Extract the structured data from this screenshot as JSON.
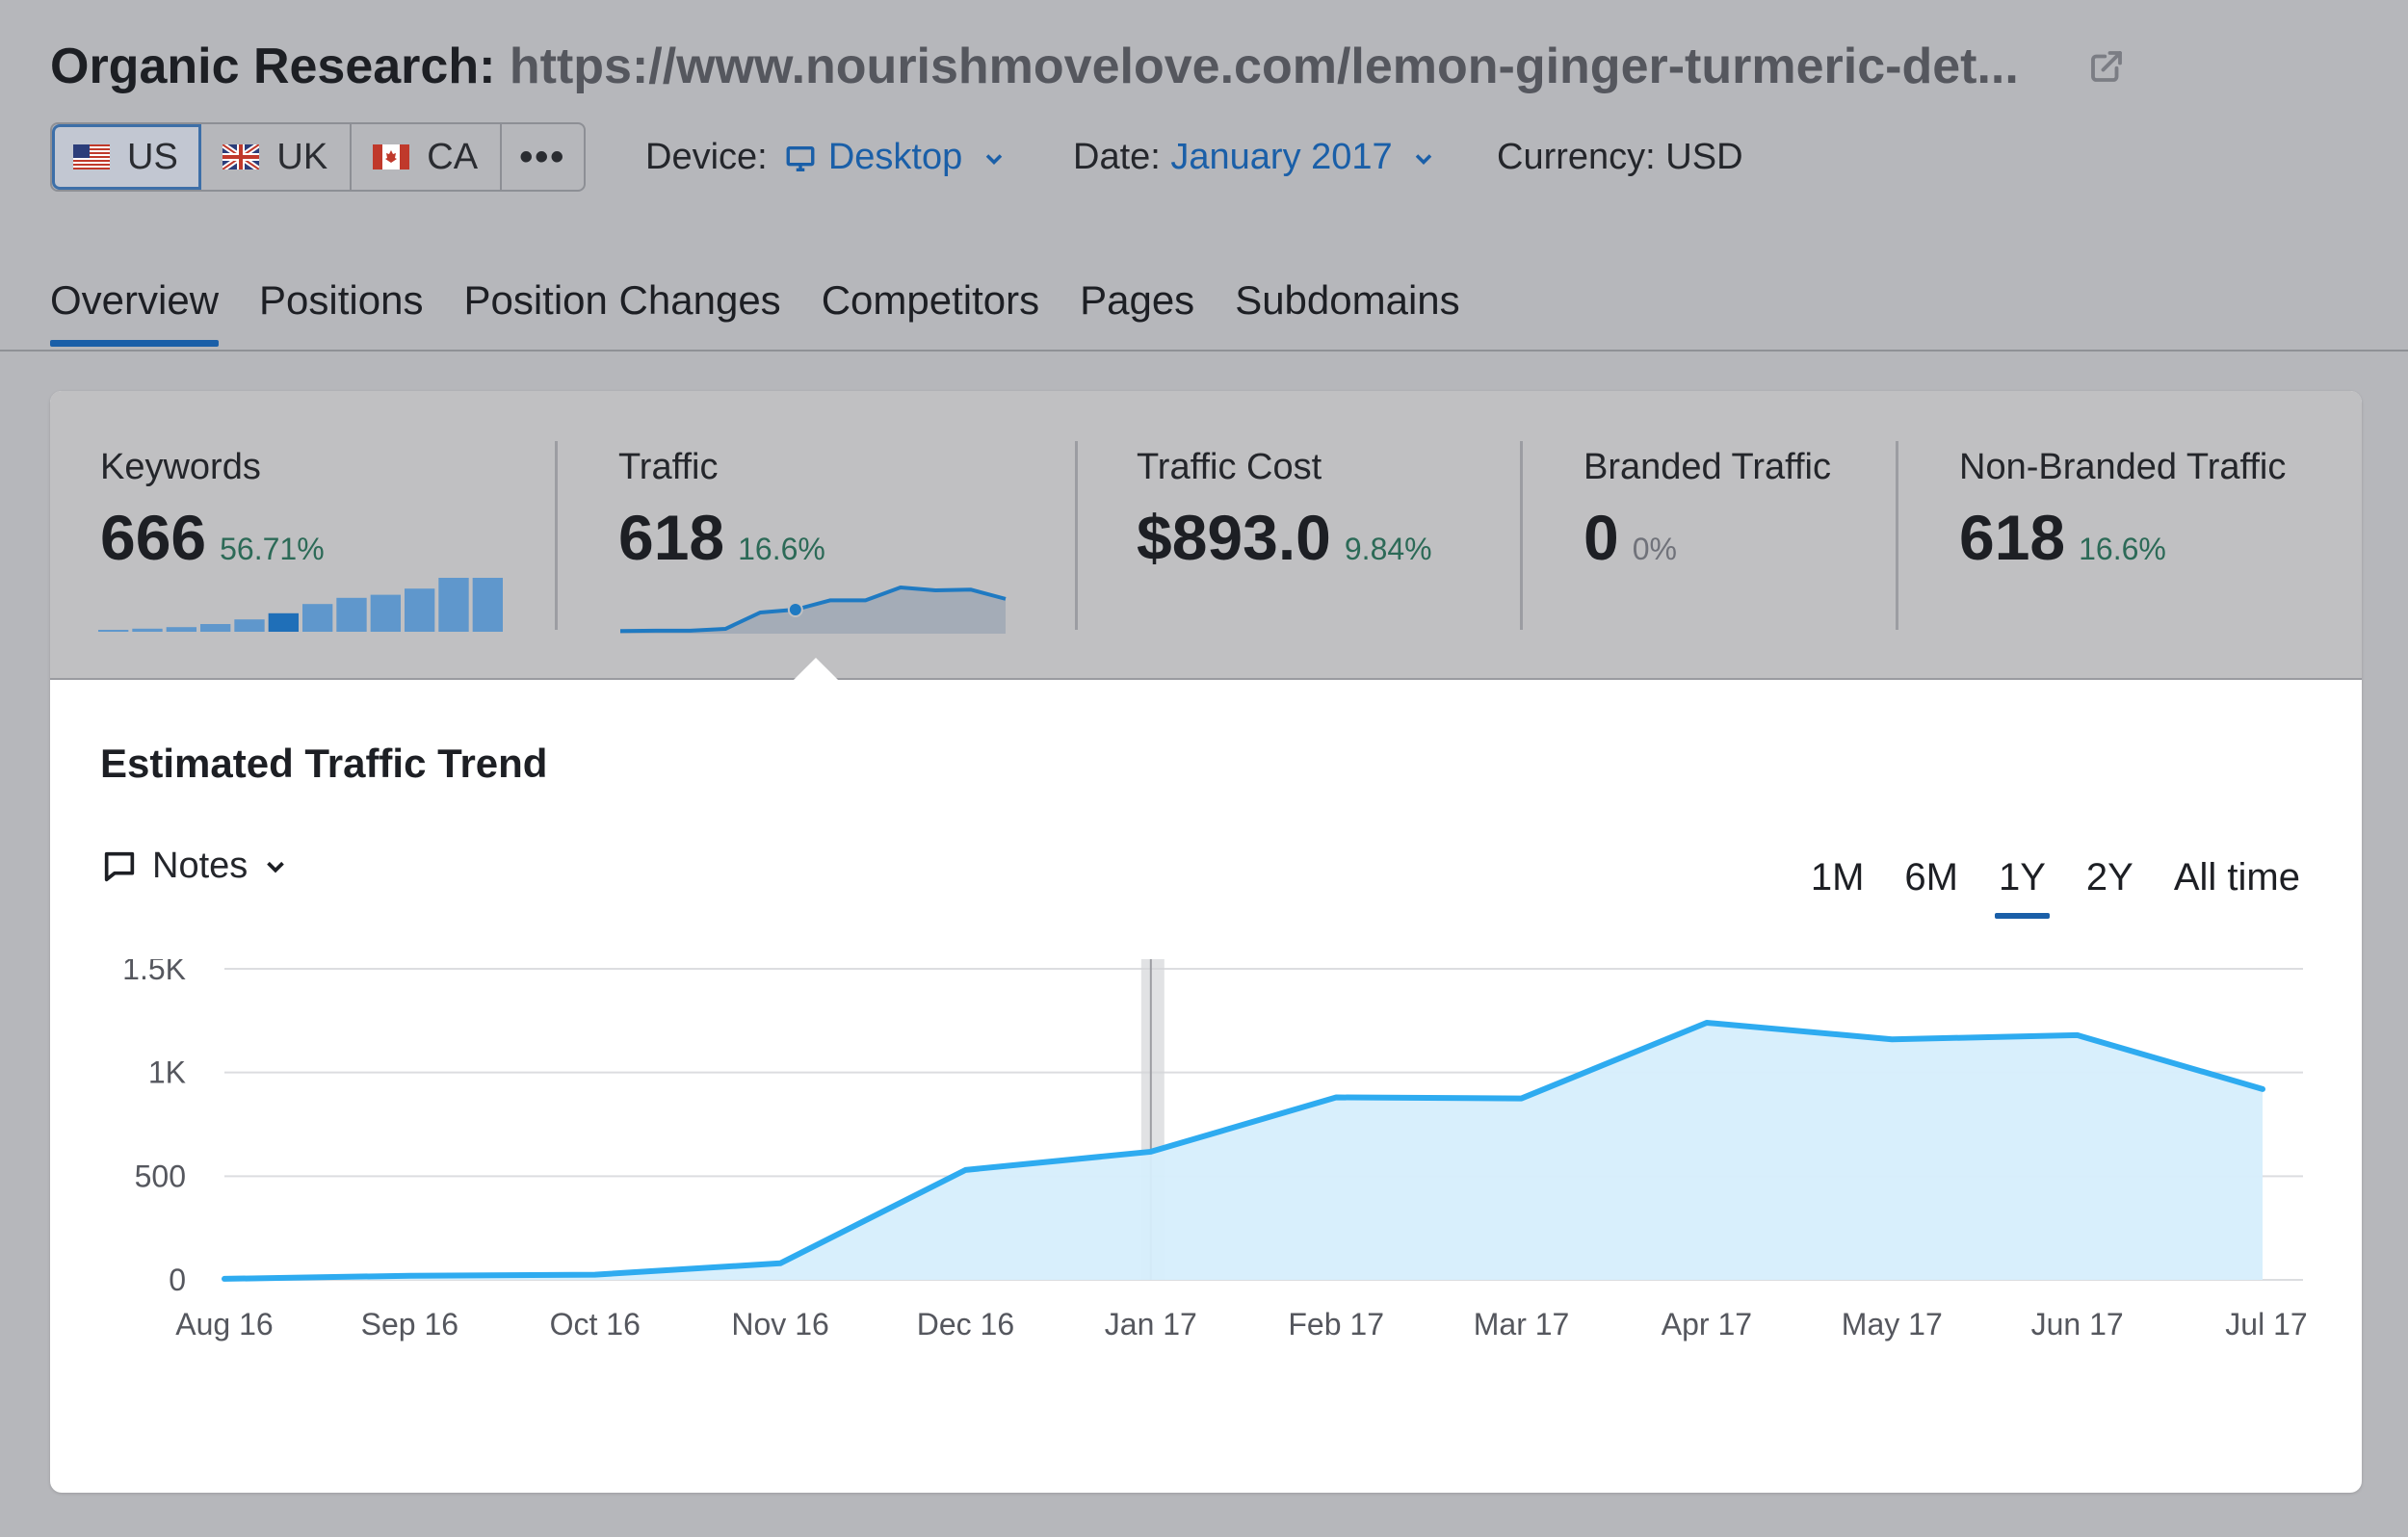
{
  "header": {
    "title_label": "Organic Research:",
    "title_url": "https://www.nourishmovelove.com/lemon-ginger-turmeric-det..."
  },
  "databases": [
    {
      "label": "US",
      "flag": "us-flag-icon",
      "active": true
    },
    {
      "label": "UK",
      "flag": "uk-flag-icon",
      "active": false
    },
    {
      "label": "CA",
      "flag": "ca-flag-icon",
      "active": false
    }
  ],
  "databases_more": "•••",
  "filters": {
    "device_label": "Device:",
    "device_value": "Desktop",
    "date_label": "Date:",
    "date_value": "January 2017",
    "currency_label": "Currency:",
    "currency_value": "USD"
  },
  "tabs": [
    {
      "label": "Overview",
      "active": true
    },
    {
      "label": "Positions"
    },
    {
      "label": "Position Changes"
    },
    {
      "label": "Competitors"
    },
    {
      "label": "Pages"
    },
    {
      "label": "Subdomains"
    }
  ],
  "summary": {
    "keywords": {
      "label": "Keywords",
      "value": "666",
      "change": "56.71%",
      "bars": [
        1,
        2,
        3,
        5,
        8,
        12,
        18,
        22,
        24,
        28,
        35,
        35
      ],
      "highlight_index": 5
    },
    "traffic": {
      "label": "Traffic",
      "value": "618",
      "change": "16.6%",
      "series": [
        2,
        3,
        3,
        8,
        54,
        62,
        88,
        88,
        124,
        116,
        118,
        92
      ],
      "highlight_index": 5
    },
    "traffic_cost": {
      "label": "Traffic Cost",
      "value": "$893.0",
      "change": "9.84%"
    },
    "branded": {
      "label": "Branded Traffic",
      "value": "0",
      "change": "0%"
    },
    "non_branded": {
      "label": "Non-Branded Traffic",
      "value": "618",
      "change": "16.6%"
    }
  },
  "trend": {
    "title": "Estimated Traffic Trend",
    "notes_label": "Notes",
    "periods": [
      {
        "label": "1M"
      },
      {
        "label": "6M"
      },
      {
        "label": "1Y",
        "active": true
      },
      {
        "label": "2Y"
      },
      {
        "label": "All time"
      }
    ]
  },
  "colors": {
    "accent": "#1a5fa8",
    "line": "#2eabf0",
    "area": "#d6eefc",
    "positive": "#2c6a57"
  },
  "chart_data": {
    "type": "area",
    "title": "Estimated Traffic Trend",
    "categories": [
      "Aug 16",
      "Sep 16",
      "Oct 16",
      "Nov 16",
      "Dec 16",
      "Jan 17",
      "Feb 17",
      "Mar 17",
      "Apr 17",
      "May 17",
      "Jun 17",
      "Jul 17"
    ],
    "series": [
      {
        "values": [
          5,
          20,
          25,
          80,
          530,
          618,
          880,
          875,
          1240,
          1160,
          1180,
          920
        ]
      }
    ],
    "y_ticks": [
      "0",
      "500",
      "1K",
      "1.5K"
    ],
    "y_tick_values": [
      0,
      500,
      1000,
      1500
    ],
    "ylim": [
      0,
      1500
    ],
    "highlight_category": "Jan 17",
    "grid": true,
    "legend": "none"
  }
}
